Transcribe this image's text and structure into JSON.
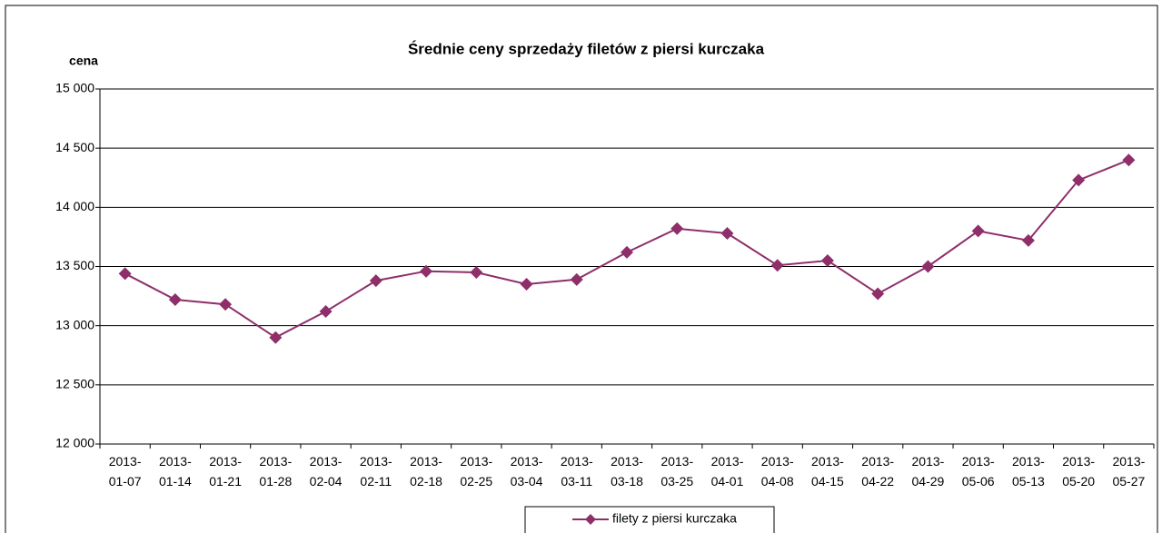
{
  "chart_data": {
    "type": "line",
    "title": "Średnie ceny sprzedaży filetów z piersi kurczaka",
    "y_label": "cena",
    "categories": [
      "2013-01-07",
      "2013-01-14",
      "2013-01-21",
      "2013-01-28",
      "2013-02-04",
      "2013-02-11",
      "2013-02-18",
      "2013-02-25",
      "2013-03-04",
      "2013-03-11",
      "2013-03-18",
      "2013-03-25",
      "2013-04-01",
      "2013-04-08",
      "2013-04-15",
      "2013-04-22",
      "2013-04-29",
      "2013-05-06",
      "2013-05-13",
      "2013-05-20",
      "2013-05-27"
    ],
    "series": [
      {
        "name": "filety z piersi kurczaka",
        "color": "#8e2f6a",
        "values": [
          13440,
          13220,
          13180,
          12900,
          13120,
          13380,
          13460,
          13450,
          13350,
          13390,
          13620,
          13820,
          13780,
          13510,
          13550,
          13270,
          13500,
          13800,
          13720,
          14230,
          14400
        ]
      }
    ],
    "ylim": [
      12000,
      15000
    ],
    "yticks": [
      {
        "value": 12000,
        "label": "12 000"
      },
      {
        "value": 12500,
        "label": "12 500"
      },
      {
        "value": 13000,
        "label": "13 000"
      },
      {
        "value": 13500,
        "label": "13 500"
      },
      {
        "value": 14000,
        "label": "14 000"
      },
      {
        "value": 14500,
        "label": "14 500"
      },
      {
        "value": 15000,
        "label": "15 000"
      }
    ],
    "grid": true,
    "legend": "bottom"
  }
}
